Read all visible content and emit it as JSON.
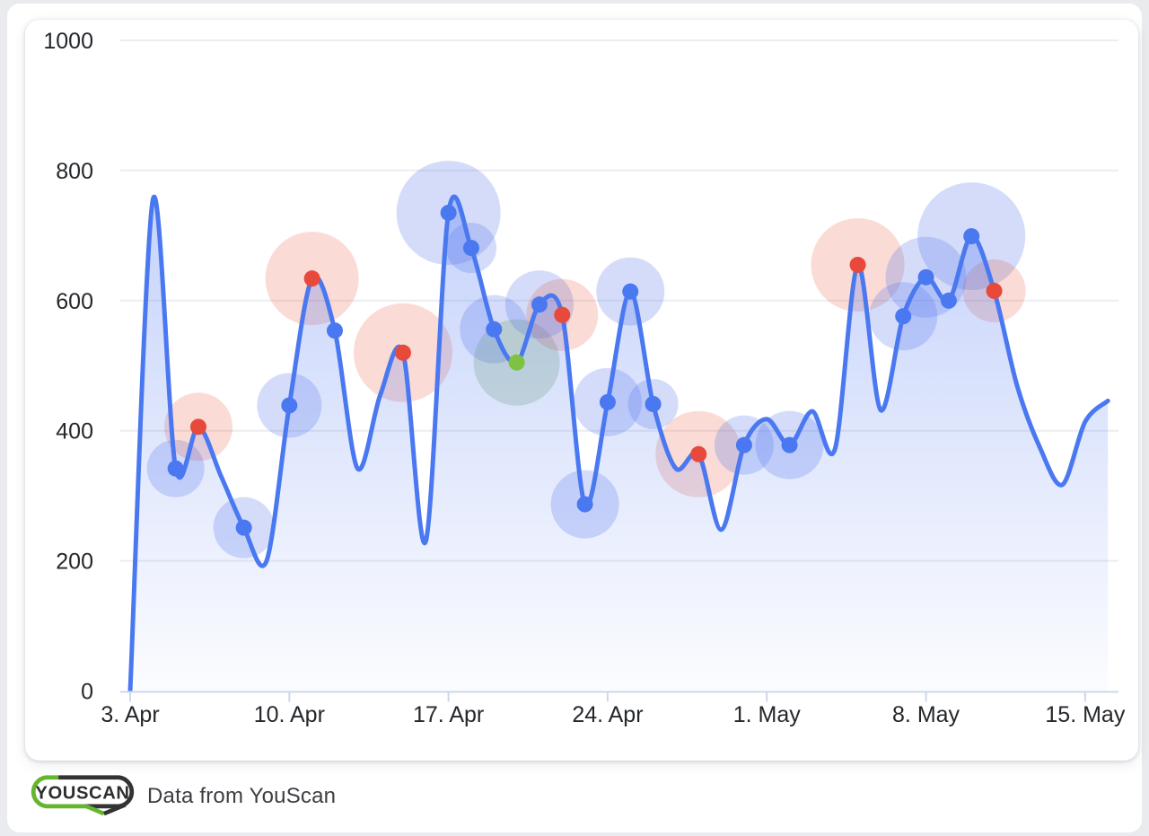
{
  "page": {
    "background": "#e9ebee",
    "card_background": "#ffffff"
  },
  "logo": {
    "text": "YOUSCAN",
    "green": "#64b62c",
    "dark": "#333333"
  },
  "caption": {
    "text": "Data from YouScan"
  },
  "chart_data": {
    "type": "line",
    "title": "",
    "xlabel": "",
    "ylabel": "",
    "ylim": [
      0,
      1000
    ],
    "y_ticks": [
      0,
      200,
      400,
      600,
      800,
      1000
    ],
    "x_tick_labels": [
      "3. Apr",
      "10. Apr",
      "17. Apr",
      "24. Apr",
      "1. May",
      "8. May",
      "15. May"
    ],
    "x_tick_days": [
      0,
      7,
      14,
      21,
      28,
      35,
      42
    ],
    "grid": "horizontal",
    "legend": "none",
    "categories": [
      "3. Apr",
      "4. Apr",
      "5. Apr",
      "6. Apr",
      "7. Apr",
      "8. Apr",
      "9. Apr",
      "10. Apr",
      "11. Apr",
      "12. Apr",
      "13. Apr",
      "14. Apr",
      "15. Apr",
      "16. Apr",
      "17. Apr",
      "18. Apr",
      "19. Apr",
      "20. Apr",
      "21. Apr",
      "22. Apr",
      "23. Apr",
      "24. Apr",
      "25. Apr",
      "26. Apr",
      "27. Apr",
      "28. Apr",
      "29. Apr",
      "30. Apr",
      "1. May",
      "2. May",
      "3. May",
      "4. May",
      "5. May",
      "6. May",
      "7. May",
      "8. May",
      "9. May",
      "10. May",
      "11. May",
      "12. May",
      "13. May",
      "14. May",
      "15. May",
      "16. May"
    ],
    "values": [
      0,
      755,
      342,
      406,
      330,
      251,
      200,
      439,
      634,
      554,
      342,
      455,
      520,
      230,
      735,
      681,
      556,
      505,
      594,
      578,
      287,
      444,
      614,
      441,
      342,
      364,
      248,
      378,
      418,
      378,
      430,
      372,
      655,
      432,
      576,
      636,
      600,
      699,
      615,
      470,
      375,
      317,
      414,
      446
    ],
    "dots": [
      {
        "i": 2,
        "color": "blue"
      },
      {
        "i": 3,
        "color": "red"
      },
      {
        "i": 5,
        "color": "blue"
      },
      {
        "i": 7,
        "color": "blue"
      },
      {
        "i": 8,
        "color": "red"
      },
      {
        "i": 9,
        "color": "blue"
      },
      {
        "i": 12,
        "color": "red"
      },
      {
        "i": 14,
        "color": "blue"
      },
      {
        "i": 15,
        "color": "blue"
      },
      {
        "i": 16,
        "color": "blue"
      },
      {
        "i": 17,
        "color": "green"
      },
      {
        "i": 18,
        "color": "blue"
      },
      {
        "i": 19,
        "color": "red"
      },
      {
        "i": 20,
        "color": "blue"
      },
      {
        "i": 21,
        "color": "blue"
      },
      {
        "i": 22,
        "color": "blue"
      },
      {
        "i": 23,
        "color": "blue"
      },
      {
        "i": 25,
        "color": "red"
      },
      {
        "i": 27,
        "color": "blue"
      },
      {
        "i": 29,
        "color": "blue"
      },
      {
        "i": 32,
        "color": "red"
      },
      {
        "i": 34,
        "color": "blue"
      },
      {
        "i": 35,
        "color": "blue"
      },
      {
        "i": 36,
        "color": "blue"
      },
      {
        "i": 37,
        "color": "blue"
      },
      {
        "i": 38,
        "color": "red"
      }
    ],
    "bubbles": [
      {
        "i": 2,
        "color": "blue",
        "r": 32
      },
      {
        "i": 3,
        "color": "pink",
        "r": 38
      },
      {
        "i": 5,
        "color": "blue",
        "r": 34
      },
      {
        "i": 7,
        "color": "blue",
        "r": 36
      },
      {
        "i": 8,
        "color": "pink",
        "r": 52
      },
      {
        "i": 12,
        "color": "pink",
        "r": 55
      },
      {
        "i": 14,
        "color": "blue",
        "r": 58
      },
      {
        "i": 15,
        "color": "blue",
        "r": 28
      },
      {
        "i": 16,
        "color": "blue",
        "r": 38
      },
      {
        "i": 17,
        "color": "green",
        "r": 48
      },
      {
        "i": 18,
        "color": "blue",
        "r": 38
      },
      {
        "i": 19,
        "color": "pink",
        "r": 40
      },
      {
        "i": 20,
        "color": "blue",
        "r": 38
      },
      {
        "i": 21,
        "color": "blue",
        "r": 38
      },
      {
        "i": 22,
        "color": "blue",
        "r": 38
      },
      {
        "i": 23,
        "color": "blue",
        "r": 28
      },
      {
        "i": 25,
        "color": "pink",
        "r": 48
      },
      {
        "i": 27,
        "color": "blue",
        "r": 33
      },
      {
        "i": 29,
        "color": "blue",
        "r": 38
      },
      {
        "i": 32,
        "color": "pink",
        "r": 52
      },
      {
        "i": 34,
        "color": "blue",
        "r": 38
      },
      {
        "i": 35,
        "color": "blue",
        "r": 45
      },
      {
        "i": 37,
        "color": "blue",
        "r": 60
      },
      {
        "i": 38,
        "color": "pink",
        "r": 35
      }
    ],
    "colors": {
      "line": "#4a78f0",
      "area_top": "rgba(77,118,242,0.42)",
      "area_bottom": "rgba(77,118,242,0.02)",
      "dot_blue": "#4a78f0",
      "dot_red": "#e7493a",
      "dot_green": "#7fc241",
      "bubble_blue": "rgba(88,120,235,0.26)",
      "bubble_pink": "rgba(231,76,52,0.20)",
      "bubble_green": "rgba(115,163,99,0.27)",
      "gridline": "#ecedf1",
      "axis_line": "#ccd7ee",
      "tick_text": "#24272b"
    }
  }
}
